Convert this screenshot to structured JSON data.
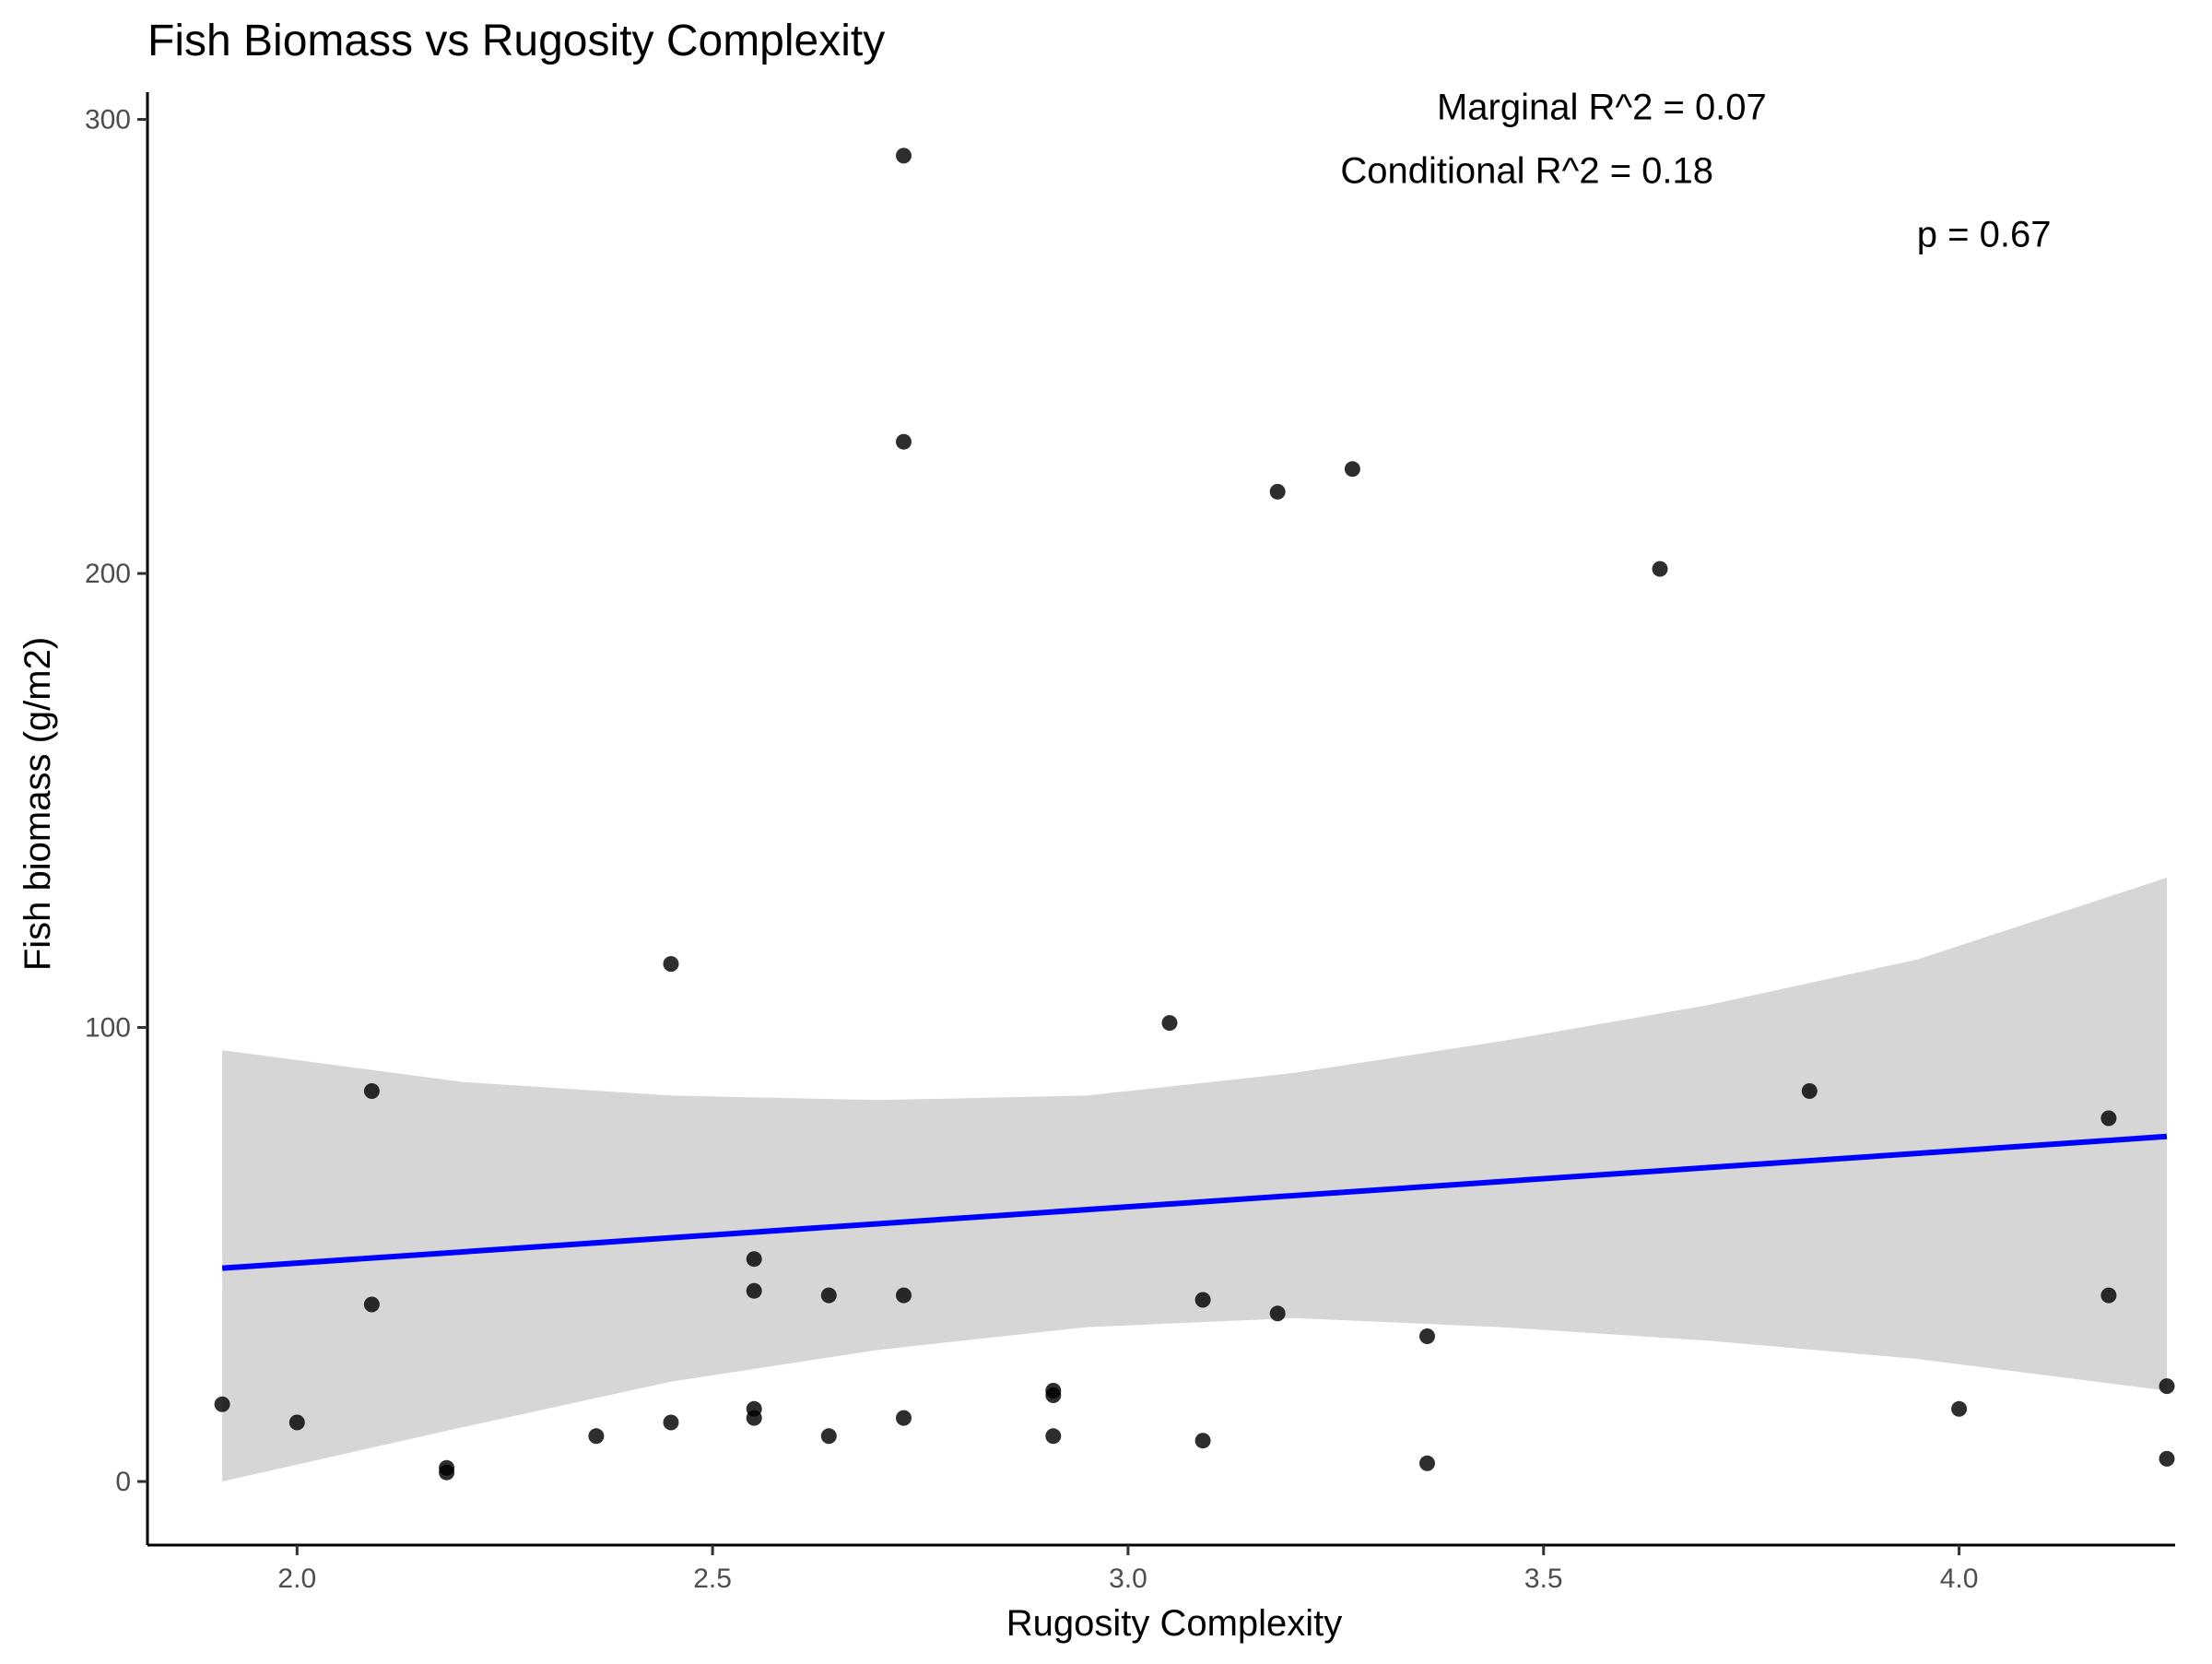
{
  "chart_data": {
    "type": "scatter",
    "title": "Fish Biomass vs Rugosity Complexity",
    "xlabel": "Rugosity Complexity",
    "ylabel": "Fish biomass (g/m2)",
    "xlim": [
      1.82,
      4.26
    ],
    "ylim": [
      -14,
      306
    ],
    "x_ticks": [
      2.0,
      2.5,
      3.0,
      3.5,
      4.0
    ],
    "x_tick_labels": [
      "2.0",
      "2.5",
      "3.0",
      "3.5",
      "4.0"
    ],
    "y_ticks": [
      0,
      100,
      200,
      300
    ],
    "y_tick_labels": [
      "0",
      "100",
      "200",
      "300"
    ],
    "grid": false,
    "annotations": [
      {
        "text": "Marginal R^2 = 0.07",
        "x": 3.57,
        "y": 300
      },
      {
        "text": "Conditional R^2 = 0.18",
        "x": 3.48,
        "y": 286
      },
      {
        "text": "p = 0.67",
        "x": 4.03,
        "y": 272
      }
    ],
    "series": [
      {
        "type": "scatter",
        "color": "#000000",
        "points": [
          {
            "x": 1.91,
            "y": 17
          },
          {
            "x": 2.0,
            "y": 13
          },
          {
            "x": 2.09,
            "y": 86
          },
          {
            "x": 2.09,
            "y": 39
          },
          {
            "x": 2.18,
            "y": 3
          },
          {
            "x": 2.18,
            "y": 2
          },
          {
            "x": 2.36,
            "y": 10
          },
          {
            "x": 2.45,
            "y": 114
          },
          {
            "x": 2.45,
            "y": 13
          },
          {
            "x": 2.55,
            "y": 49
          },
          {
            "x": 2.55,
            "y": 42
          },
          {
            "x": 2.55,
            "y": 16
          },
          {
            "x": 2.55,
            "y": 14
          },
          {
            "x": 2.64,
            "y": 41
          },
          {
            "x": 2.64,
            "y": 10
          },
          {
            "x": 2.73,
            "y": 292
          },
          {
            "x": 2.73,
            "y": 229
          },
          {
            "x": 2.73,
            "y": 41
          },
          {
            "x": 2.73,
            "y": 14
          },
          {
            "x": 2.91,
            "y": 20
          },
          {
            "x": 2.91,
            "y": 19
          },
          {
            "x": 2.91,
            "y": 10
          },
          {
            "x": 3.05,
            "y": 101
          },
          {
            "x": 3.09,
            "y": 40
          },
          {
            "x": 3.09,
            "y": 9
          },
          {
            "x": 3.18,
            "y": 218
          },
          {
            "x": 3.18,
            "y": 37
          },
          {
            "x": 3.27,
            "y": 223
          },
          {
            "x": 3.36,
            "y": 32
          },
          {
            "x": 3.36,
            "y": 4
          },
          {
            "x": 3.64,
            "y": 201
          },
          {
            "x": 3.82,
            "y": 86
          },
          {
            "x": 4.0,
            "y": 16
          },
          {
            "x": 4.18,
            "y": 80
          },
          {
            "x": 4.18,
            "y": 41
          },
          {
            "x": 4.25,
            "y": 21
          },
          {
            "x": 4.25,
            "y": 5
          }
        ]
      },
      {
        "type": "line",
        "color": "#0000ff",
        "points": [
          {
            "x": 1.91,
            "y": 47
          },
          {
            "x": 4.25,
            "y": 76
          }
        ]
      },
      {
        "type": "ribbon",
        "color": "#d6d6d6",
        "points": [
          {
            "x": 1.91,
            "lower": 0,
            "upper": 95
          },
          {
            "x": 2.2,
            "lower": 12,
            "upper": 88
          },
          {
            "x": 2.45,
            "lower": 22,
            "upper": 85
          },
          {
            "x": 2.7,
            "lower": 29,
            "upper": 84
          },
          {
            "x": 2.95,
            "lower": 34,
            "upper": 85
          },
          {
            "x": 3.2,
            "lower": 36,
            "upper": 90
          },
          {
            "x": 3.45,
            "lower": 34,
            "upper": 97
          },
          {
            "x": 3.7,
            "lower": 31,
            "upper": 105
          },
          {
            "x": 3.95,
            "lower": 27,
            "upper": 115
          },
          {
            "x": 4.25,
            "lower": 20,
            "upper": 133
          }
        ]
      }
    ]
  }
}
